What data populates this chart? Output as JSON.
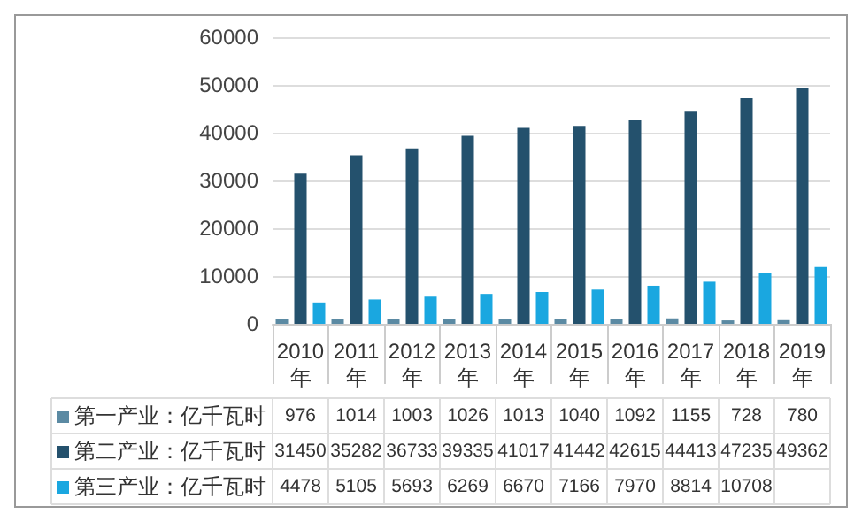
{
  "chart_data": {
    "type": "bar",
    "categories": [
      "2010\n年",
      "2011\n年",
      "2012\n年",
      "2013\n年",
      "2014\n年",
      "2015\n年",
      "2016\n年",
      "2017\n年",
      "2018\n年",
      "2019\n年"
    ],
    "series": [
      {
        "name": "第一产业：亿千瓦时",
        "color": "#5b8aa3",
        "values": [
          976,
          1014,
          1003,
          1026,
          1013,
          1040,
          1092,
          1155,
          728,
          780
        ],
        "value_labels": [
          "976",
          "1014",
          "1003",
          "1026",
          "1013",
          "1040",
          "1092",
          "1155",
          "728",
          "780"
        ]
      },
      {
        "name": "第二产业：亿千瓦时",
        "color": "#24516d",
        "values": [
          31450,
          35282,
          36733,
          39335,
          41017,
          41442,
          42615,
          44413,
          47235,
          49362
        ],
        "value_labels": [
          "31450",
          "35282",
          "36733",
          "39335",
          "41017",
          "41442",
          "42615",
          "44413",
          "47235",
          "49362"
        ]
      },
      {
        "name": "第三产业：亿千瓦时",
        "color": "#1aa7e0",
        "values": [
          4478,
          5105,
          5693,
          6269,
          6670,
          7166,
          7970,
          8814,
          10708,
          11900
        ],
        "value_labels": [
          "4478",
          "5105",
          "5693",
          "6269",
          "6670",
          "7166",
          "7970",
          "8814",
          "10708",
          null
        ]
      }
    ],
    "ylim": [
      0,
      60000
    ],
    "yticks": [
      0,
      10000,
      20000,
      30000,
      40000,
      50000,
      60000
    ],
    "grid": "y",
    "legend": "bottom"
  }
}
